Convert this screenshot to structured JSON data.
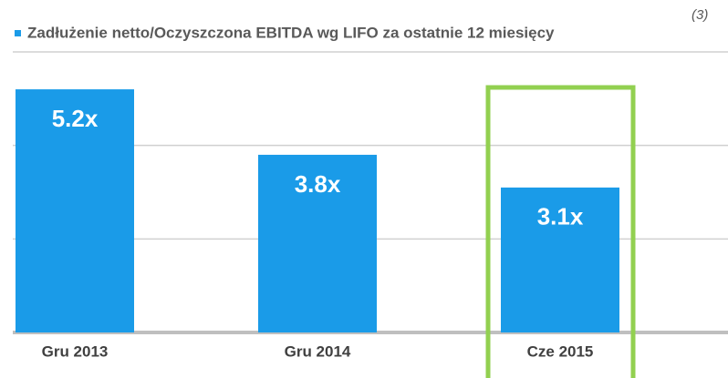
{
  "chart_data": {
    "type": "bar",
    "title": "Zadłużenie netto/Oczyszczona EBITDA wg LIFO za ostatnie 12 miesięcy",
    "annotation": "(3)",
    "categories": [
      "Gru 2013",
      "Gru 2014",
      "Cze 2015"
    ],
    "values": [
      5.2,
      3.8,
      3.1
    ],
    "value_labels": [
      "5.2x",
      "3.8x",
      "3.1x"
    ],
    "color": "#1a9be8",
    "highlight": "Cze 2015",
    "highlight_color": "#92d050",
    "ylim": [
      0,
      6
    ],
    "yticks": [
      0,
      2,
      4,
      6
    ],
    "grid": true
  }
}
